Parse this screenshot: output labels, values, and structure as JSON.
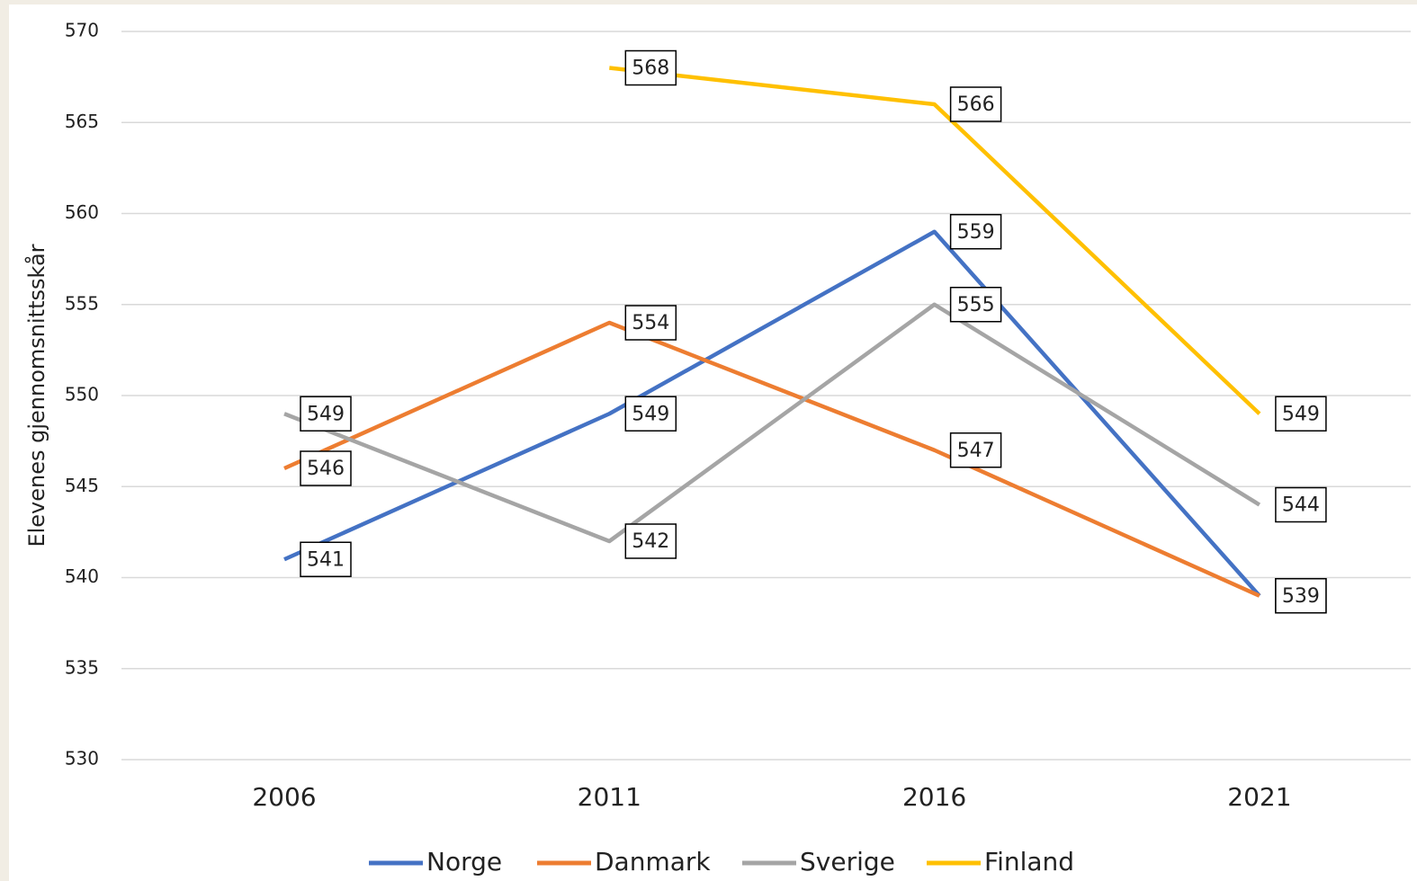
{
  "chart_data": {
    "type": "line",
    "y_label": "Elevenes gjennomsnittsskår",
    "categories": [
      "2006",
      "2011",
      "2016",
      "2021"
    ],
    "series": [
      {
        "name": "Norge",
        "color": "#4472c4",
        "values": [
          541,
          549,
          559,
          539
        ]
      },
      {
        "name": "Danmark",
        "color": "#ed7d31",
        "values": [
          546,
          554,
          547,
          539
        ]
      },
      {
        "name": "Sverige",
        "color": "#a5a5a5",
        "values": [
          549,
          542,
          555,
          544
        ]
      },
      {
        "name": "Finland",
        "color": "#ffc000",
        "values": [
          null,
          568,
          566,
          549
        ]
      }
    ],
    "ylim": [
      530,
      570
    ],
    "yticks": [
      530,
      535,
      540,
      545,
      550,
      555,
      560,
      565,
      570
    ],
    "grid": true,
    "legend": "bottom"
  }
}
